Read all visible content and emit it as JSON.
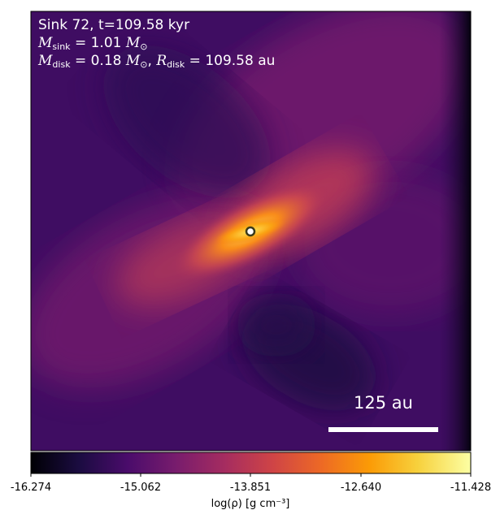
{
  "annotation": {
    "title": "Sink 72, t=109.58 kyr",
    "m_sink_symbol": "M",
    "m_sink_sub": "sink",
    "m_sink_value": " = 1.01 ",
    "m_unit_symbol": "M",
    "m_unit_sub": "⊙",
    "m_disk_symbol": "M",
    "m_disk_sub": "disk",
    "m_disk_value": " = 0.18 ",
    "r_disk_symbol": "R",
    "r_disk_sub": "disk",
    "r_disk_value": " = 109.58 au"
  },
  "scale_bar": {
    "label": "125 au"
  },
  "colorbar": {
    "label": "log(ρ) [g cm⁻³]",
    "ticks": [
      "-16.274",
      "-15.062",
      "-13.851",
      "-12.640",
      "-11.428"
    ],
    "colormap": "inferno",
    "colors": [
      "#000004",
      "#1b0c41",
      "#4a0c6b",
      "#781c6d",
      "#a52c60",
      "#cf4446",
      "#ed6925",
      "#fb9b06",
      "#f7d13d",
      "#fcffa4"
    ]
  },
  "sink_marker": {
    "color": "#ffffff",
    "edge": "#3a3a1a"
  }
}
